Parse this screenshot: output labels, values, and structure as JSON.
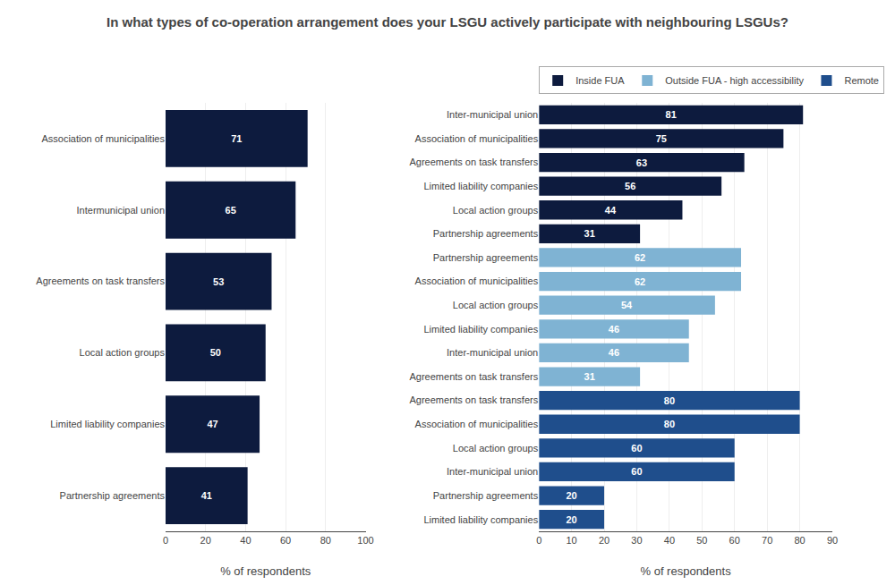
{
  "chart_data": [
    {
      "type": "bar",
      "orientation": "horizontal",
      "title": "In what types of co-operation arrangement does your LSGU actively participate with neighbouring LSGUs?",
      "categories": [
        "Partnership agreements",
        "Limited liability companies",
        "Local action groups",
        "Agreements on task transfers",
        "Intermunicipal union",
        "Association of municipalities"
      ],
      "values": [
        41,
        47,
        50,
        53,
        65,
        71
      ],
      "color": "#0d1b3e",
      "xlabel": "% of respondents",
      "xlim": [
        0,
        100
      ],
      "xticks": [
        0,
        20,
        40,
        60,
        80,
        100
      ],
      "grid": true,
      "data_labels": true
    },
    {
      "type": "bar",
      "orientation": "horizontal",
      "categories": [
        "Inter-municipal union",
        "Association of municipalities",
        "Agreements on task transfers",
        "Limited liability companies",
        "Local action groups",
        "Partnership agreements",
        "Partnership agreements",
        "Association of municipalities",
        "Local action groups",
        "Limited liability companies",
        "Inter-municipal union",
        "Agreements on task transfers",
        "Agreements on task transfers",
        "Association of municipalities",
        "Local action groups",
        "Inter-municipal union",
        "Partnership agreements",
        "Limited liability companies"
      ],
      "series": [
        {
          "name": "Inside FUA",
          "color": "#0d1b3e",
          "values": [
            81,
            75,
            63,
            56,
            44,
            31,
            null,
            null,
            null,
            null,
            null,
            null,
            null,
            null,
            null,
            null,
            null,
            null
          ]
        },
        {
          "name": "Outside FUA - high accessibility",
          "color": "#7fb3d3",
          "values": [
            null,
            null,
            null,
            null,
            null,
            null,
            62,
            62,
            54,
            46,
            46,
            31,
            null,
            null,
            null,
            null,
            null,
            null
          ]
        },
        {
          "name": "Remote",
          "color": "#1f4e8c",
          "values": [
            null,
            null,
            null,
            null,
            null,
            null,
            null,
            null,
            null,
            null,
            null,
            null,
            80,
            80,
            60,
            60,
            20,
            20
          ]
        }
      ],
      "xlabel": "% of respondents",
      "xlim": [
        0,
        90
      ],
      "xticks": [
        0,
        10,
        20,
        30,
        40,
        50,
        60,
        70,
        80,
        90
      ],
      "grid": true,
      "data_labels": true,
      "legend": "top left"
    }
  ]
}
